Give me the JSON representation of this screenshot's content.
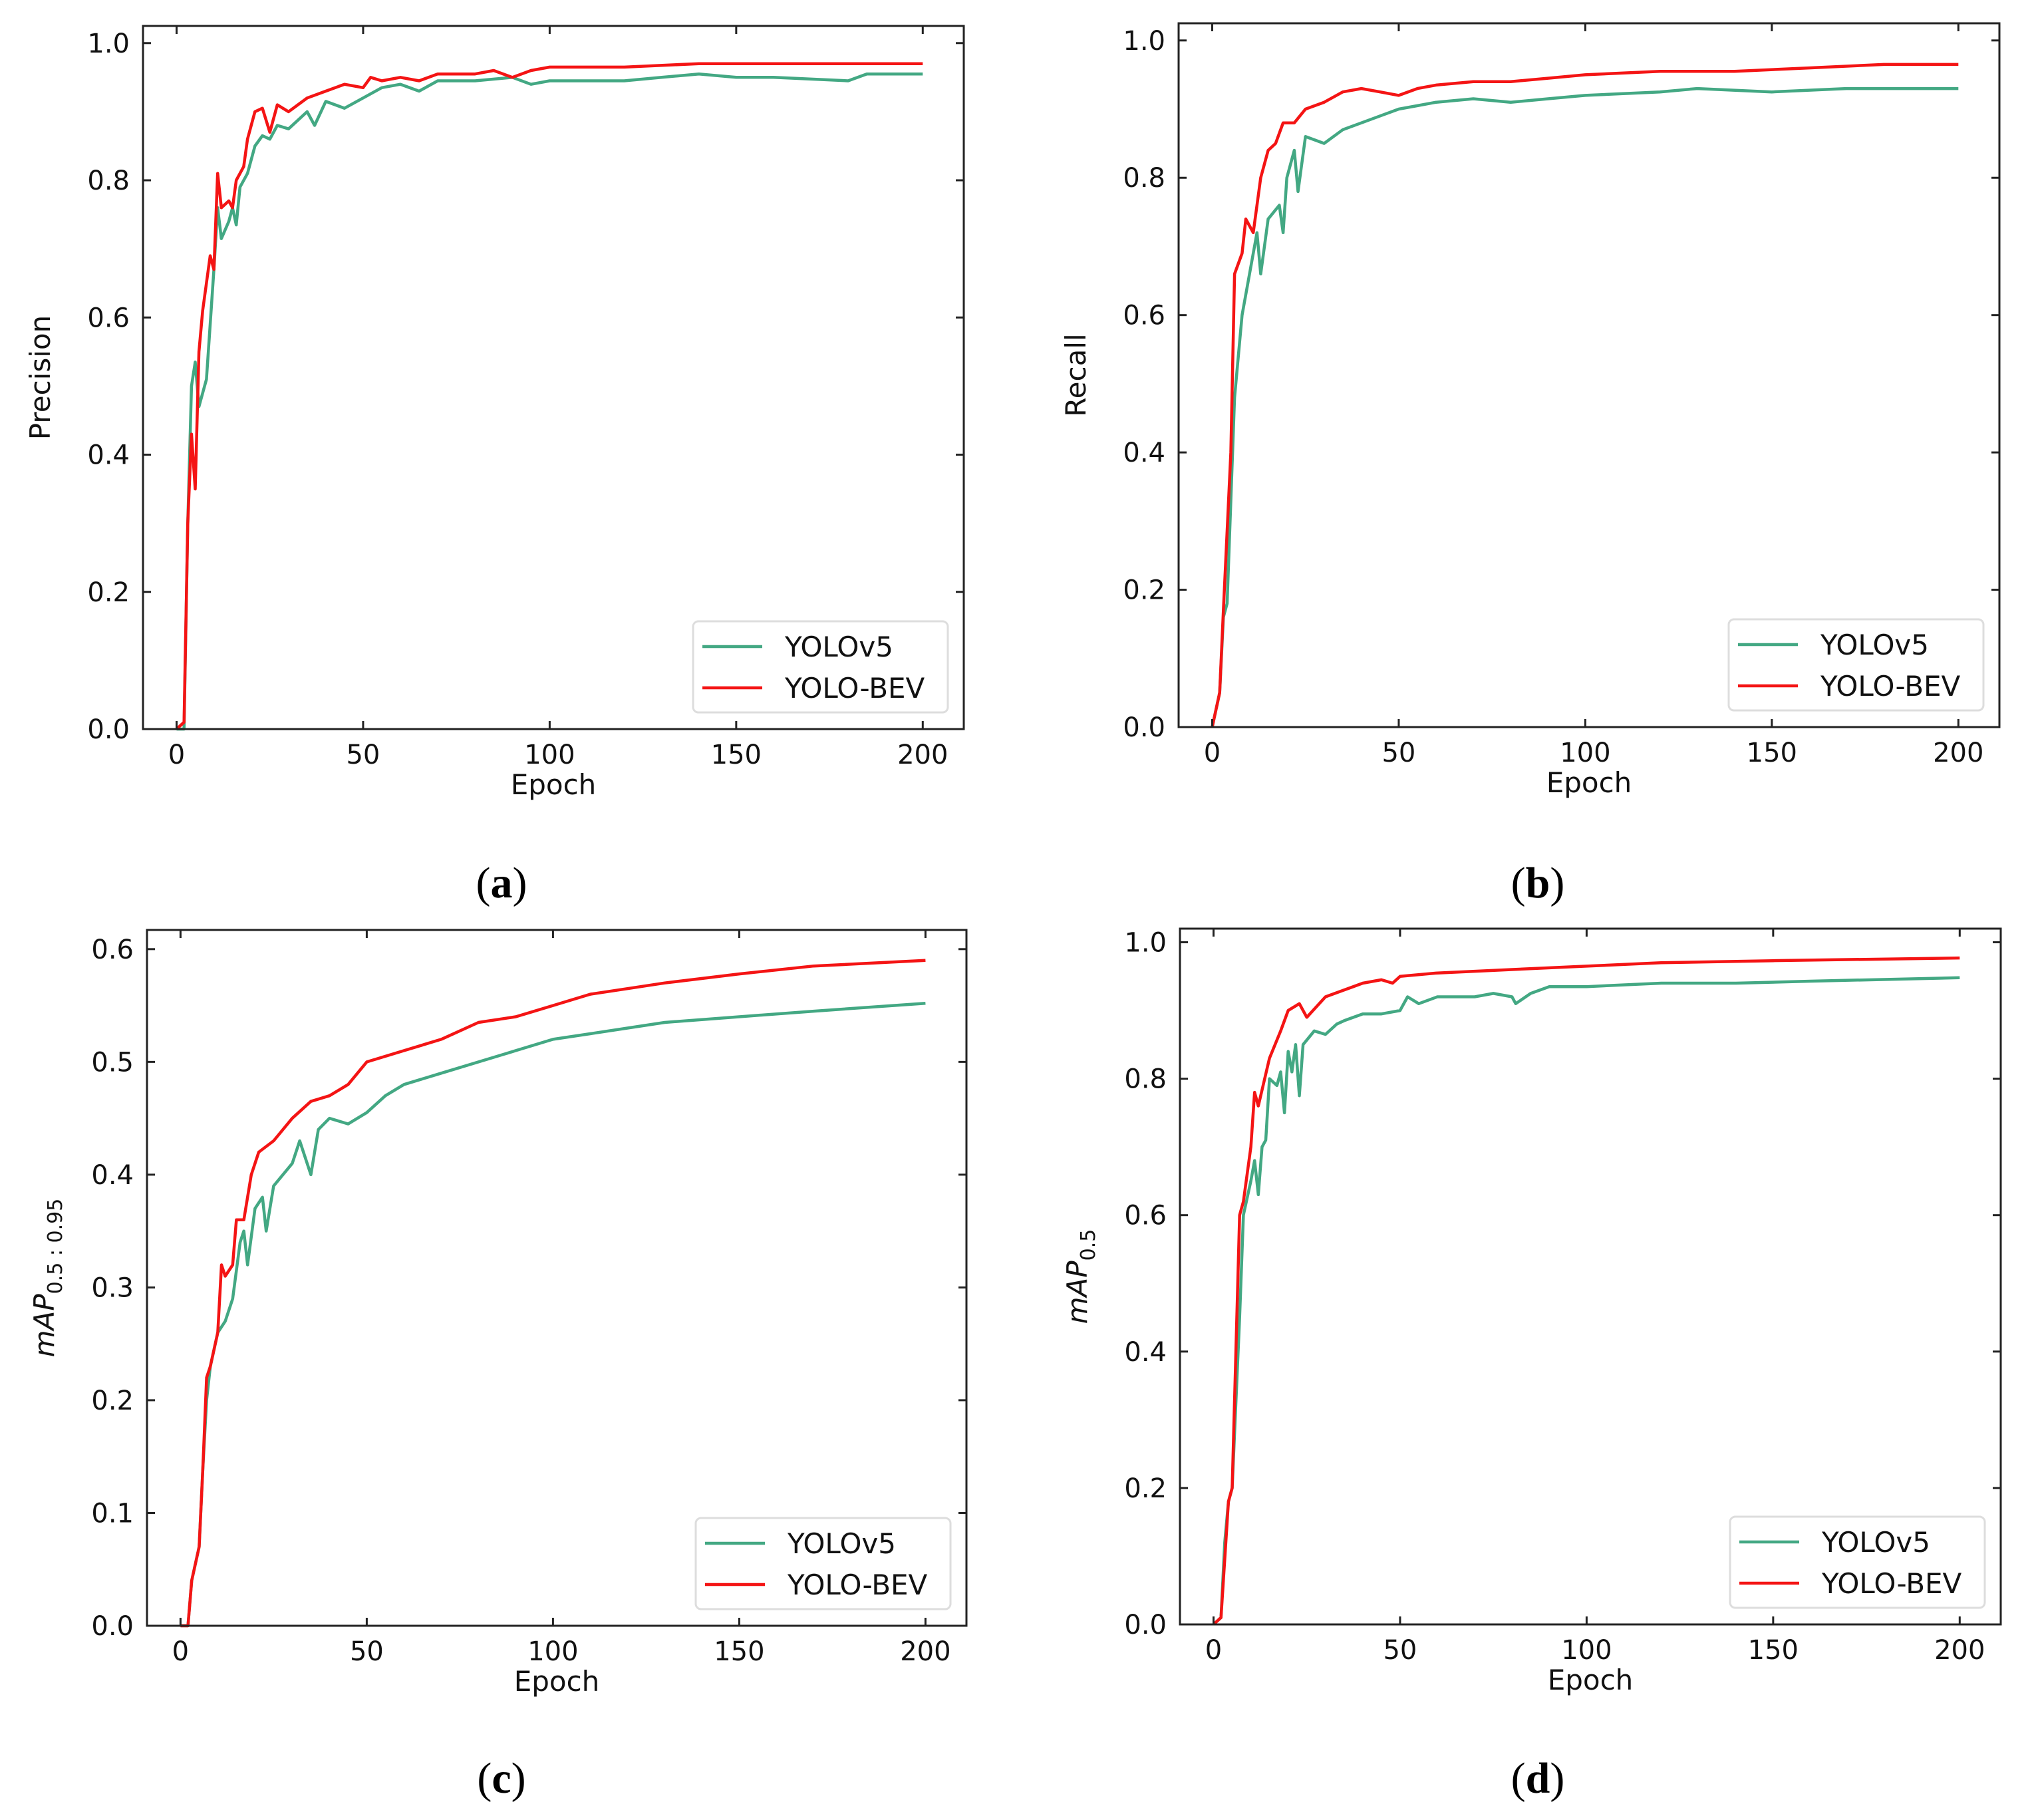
{
  "colors": {
    "YOLOv5": "#43a883",
    "YOLO-BEV": "#f41414"
  },
  "chart_data": [
    {
      "type": "line",
      "caption": "a",
      "xlabel": "Epoch",
      "ylabel": "Precision",
      "ylabel_sub": "",
      "xlim": [
        -9,
        211
      ],
      "ylim": [
        0,
        1.025
      ],
      "xticks": [
        0,
        50,
        100,
        150,
        200
      ],
      "yticks": [
        0.0,
        0.2,
        0.4,
        0.6,
        0.8,
        1.0
      ],
      "legend_position": "lower-right",
      "series": [
        {
          "name": "YOLOv5",
          "x": [
            0,
            2,
            3,
            4,
            5,
            6,
            8,
            10,
            11,
            12,
            14,
            15,
            16,
            17,
            19,
            21,
            23,
            25,
            27,
            30,
            35,
            37,
            40,
            45,
            50,
            55,
            60,
            65,
            70,
            80,
            90,
            95,
            100,
            120,
            130,
            140,
            150,
            160,
            180,
            185,
            200
          ],
          "y": [
            0,
            0,
            0.3,
            0.5,
            0.535,
            0.47,
            0.51,
            0.67,
            0.76,
            0.715,
            0.74,
            0.76,
            0.735,
            0.79,
            0.81,
            0.85,
            0.865,
            0.86,
            0.88,
            0.875,
            0.9,
            0.88,
            0.915,
            0.905,
            0.92,
            0.935,
            0.94,
            0.93,
            0.945,
            0.945,
            0.95,
            0.94,
            0.945,
            0.945,
            0.95,
            0.955,
            0.95,
            0.95,
            0.945,
            0.955,
            0.955
          ]
        },
        {
          "name": "YOLO-BEV",
          "x": [
            0,
            2,
            3,
            4,
            5,
            6,
            7,
            9,
            10,
            11,
            12,
            14,
            15,
            16,
            18,
            19,
            21,
            23,
            25,
            27,
            30,
            35,
            40,
            45,
            50,
            52,
            55,
            60,
            65,
            70,
            80,
            85,
            90,
            95,
            100,
            120,
            140,
            160,
            180,
            200
          ],
          "y": [
            0,
            0.01,
            0.3,
            0.43,
            0.35,
            0.55,
            0.61,
            0.69,
            0.67,
            0.81,
            0.76,
            0.77,
            0.76,
            0.8,
            0.82,
            0.86,
            0.9,
            0.905,
            0.87,
            0.91,
            0.9,
            0.92,
            0.93,
            0.94,
            0.935,
            0.95,
            0.945,
            0.95,
            0.945,
            0.955,
            0.955,
            0.96,
            0.95,
            0.96,
            0.965,
            0.965,
            0.97,
            0.97,
            0.97,
            0.97
          ]
        }
      ]
    },
    {
      "type": "line",
      "caption": "b",
      "xlabel": "Epoch",
      "ylabel": "Recall",
      "ylabel_sub": "",
      "xlim": [
        -9,
        211
      ],
      "ylim": [
        0,
        1.025
      ],
      "xticks": [
        0,
        50,
        100,
        150,
        200
      ],
      "yticks": [
        0.0,
        0.2,
        0.4,
        0.6,
        0.8,
        1.0
      ],
      "legend_position": "lower-right",
      "series": [
        {
          "name": "YOLOv5",
          "x": [
            0,
            2,
            3,
            4,
            6,
            8,
            10,
            12,
            13,
            15,
            18,
            19,
            20,
            22,
            23,
            25,
            30,
            35,
            40,
            45,
            50,
            55,
            60,
            70,
            80,
            90,
            100,
            120,
            130,
            150,
            170,
            200
          ],
          "y": [
            0,
            0.05,
            0.16,
            0.18,
            0.48,
            0.6,
            0.66,
            0.72,
            0.66,
            0.74,
            0.76,
            0.72,
            0.8,
            0.84,
            0.78,
            0.86,
            0.85,
            0.87,
            0.88,
            0.89,
            0.9,
            0.905,
            0.91,
            0.915,
            0.91,
            0.915,
            0.92,
            0.925,
            0.93,
            0.925,
            0.93,
            0.93
          ]
        },
        {
          "name": "YOLO-BEV",
          "x": [
            0,
            2,
            3,
            5,
            6,
            8,
            9,
            11,
            13,
            15,
            17,
            19,
            22,
            25,
            30,
            35,
            40,
            45,
            50,
            55,
            60,
            70,
            80,
            90,
            100,
            120,
            140,
            160,
            180,
            200
          ],
          "y": [
            0,
            0.05,
            0.17,
            0.4,
            0.66,
            0.69,
            0.74,
            0.72,
            0.8,
            0.84,
            0.85,
            0.88,
            0.88,
            0.9,
            0.91,
            0.925,
            0.93,
            0.925,
            0.92,
            0.93,
            0.935,
            0.94,
            0.94,
            0.945,
            0.95,
            0.955,
            0.955,
            0.96,
            0.965,
            0.965
          ]
        }
      ]
    },
    {
      "type": "line",
      "caption": "c",
      "xlabel": "Epoch",
      "ylabel": "mAP",
      "ylabel_sub": "0.5 : 0.95",
      "xlim": [
        -9,
        211
      ],
      "ylim": [
        0,
        0.617
      ],
      "xticks": [
        0,
        50,
        100,
        150,
        200
      ],
      "yticks": [
        0.0,
        0.1,
        0.2,
        0.3,
        0.4,
        0.5,
        0.6
      ],
      "legend_position": "lower-right",
      "series": [
        {
          "name": "YOLOv5",
          "x": [
            0,
            2,
            3,
            5,
            6,
            7,
            8,
            10,
            12,
            14,
            16,
            17,
            18,
            20,
            22,
            23,
            25,
            30,
            32,
            35,
            37,
            40,
            45,
            50,
            55,
            60,
            70,
            80,
            90,
            100,
            110,
            120,
            130,
            150,
            170,
            200
          ],
          "y": [
            0,
            0,
            0.04,
            0.07,
            0.14,
            0.2,
            0.23,
            0.26,
            0.27,
            0.29,
            0.34,
            0.35,
            0.32,
            0.37,
            0.38,
            0.35,
            0.39,
            0.41,
            0.43,
            0.4,
            0.44,
            0.45,
            0.445,
            0.455,
            0.47,
            0.48,
            0.49,
            0.5,
            0.51,
            0.52,
            0.525,
            0.53,
            0.535,
            0.54,
            0.545,
            0.552
          ]
        },
        {
          "name": "YOLO-BEV",
          "x": [
            0,
            2,
            3,
            5,
            6,
            7,
            8,
            10,
            11,
            12,
            14,
            15,
            17,
            19,
            21,
            25,
            30,
            35,
            40,
            45,
            50,
            55,
            60,
            70,
            80,
            90,
            100,
            110,
            120,
            130,
            150,
            170,
            200
          ],
          "y": [
            0,
            0,
            0.04,
            0.07,
            0.14,
            0.22,
            0.23,
            0.26,
            0.32,
            0.31,
            0.32,
            0.36,
            0.36,
            0.4,
            0.42,
            0.43,
            0.45,
            0.465,
            0.47,
            0.48,
            0.5,
            0.505,
            0.51,
            0.52,
            0.535,
            0.54,
            0.55,
            0.56,
            0.565,
            0.57,
            0.578,
            0.585,
            0.59
          ]
        }
      ]
    },
    {
      "type": "line",
      "caption": "d",
      "xlabel": "Epoch",
      "ylabel": "mAP",
      "ylabel_sub": "0.5",
      "xlim": [
        -9,
        211
      ],
      "ylim": [
        0,
        1.02
      ],
      "xticks": [
        0,
        50,
        100,
        150,
        200
      ],
      "yticks": [
        0.0,
        0.2,
        0.4,
        0.6,
        0.8,
        1.0
      ],
      "legend_position": "lower-right",
      "series": [
        {
          "name": "YOLOv5",
          "x": [
            0,
            2,
            3,
            4,
            5,
            7,
            8,
            10,
            11,
            12,
            13,
            14,
            15,
            17,
            18,
            19,
            20,
            21,
            22,
            23,
            24,
            27,
            30,
            33,
            35,
            40,
            45,
            50,
            52,
            55,
            60,
            70,
            75,
            80,
            81,
            85,
            90,
            100,
            120,
            140,
            160,
            200
          ],
          "y": [
            0,
            0.01,
            0.12,
            0.18,
            0.2,
            0.45,
            0.6,
            0.65,
            0.68,
            0.63,
            0.7,
            0.71,
            0.8,
            0.79,
            0.81,
            0.75,
            0.84,
            0.81,
            0.85,
            0.775,
            0.85,
            0.87,
            0.865,
            0.88,
            0.885,
            0.895,
            0.895,
            0.9,
            0.92,
            0.91,
            0.92,
            0.92,
            0.925,
            0.92,
            0.91,
            0.925,
            0.935,
            0.935,
            0.94,
            0.94,
            0.943,
            0.948
          ]
        },
        {
          "name": "YOLO-BEV",
          "x": [
            0,
            2,
            4,
            5,
            7,
            8,
            10,
            11,
            12,
            15,
            18,
            20,
            23,
            25,
            30,
            35,
            40,
            45,
            48,
            50,
            60,
            80,
            100,
            120,
            150,
            200
          ],
          "y": [
            0,
            0.01,
            0.18,
            0.2,
            0.6,
            0.62,
            0.7,
            0.78,
            0.76,
            0.83,
            0.87,
            0.9,
            0.91,
            0.89,
            0.92,
            0.93,
            0.94,
            0.945,
            0.94,
            0.95,
            0.955,
            0.96,
            0.965,
            0.97,
            0.973,
            0.977
          ]
        }
      ]
    }
  ]
}
